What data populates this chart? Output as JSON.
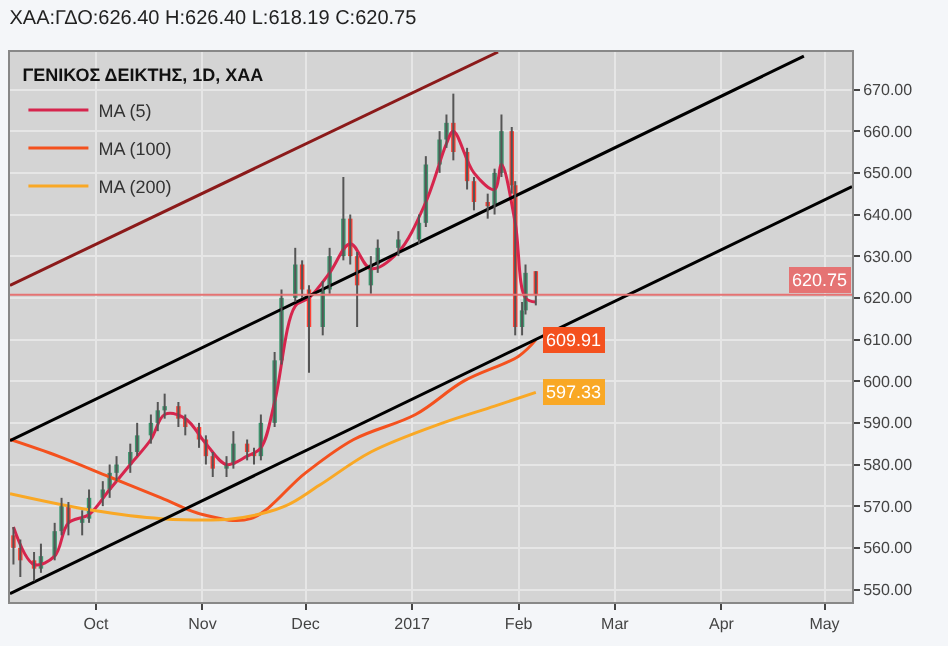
{
  "chart_data": {
    "type": "candlestick",
    "title": "ΧΑΑ:ΓΔΟ:626.40 H:626.40 L:618.19 C:620.75",
    "legend_title": "ΓΕΝΙΚΟΣ ΔΕΙΚΤΗΣ, 1D, ΧΑΑ",
    "x": [
      "2016-09-07",
      "2016-09-09",
      "2016-09-13",
      "2016-09-15",
      "2016-09-19",
      "2016-09-21",
      "2016-09-23",
      "2016-09-27",
      "2016-09-29",
      "2016-10-03",
      "2016-10-05",
      "2016-10-07",
      "2016-10-11",
      "2016-10-13",
      "2016-10-17",
      "2016-10-19",
      "2016-10-21",
      "2016-10-25",
      "2016-10-27",
      "2016-10-31",
      "2016-11-02",
      "2016-11-04",
      "2016-11-08",
      "2016-11-10",
      "2016-11-14",
      "2016-11-16",
      "2016-11-18",
      "2016-11-22",
      "2016-11-24",
      "2016-11-28",
      "2016-11-30",
      "2016-12-02",
      "2016-12-06",
      "2016-12-08",
      "2016-12-12",
      "2016-12-14",
      "2016-12-16",
      "2016-12-20",
      "2016-12-22",
      "2016-12-28",
      "2017-01-03",
      "2017-01-05",
      "2017-01-09",
      "2017-01-11",
      "2017-01-13",
      "2017-01-17",
      "2017-01-19",
      "2017-01-23",
      "2017-01-25",
      "2017-01-27",
      "2017-01-30",
      "2017-01-31",
      "2017-02-02",
      "2017-02-03",
      "2017-02-06"
    ],
    "ohlc": [
      [
        563,
        565,
        556,
        560
      ],
      [
        560,
        562,
        553,
        557
      ],
      [
        557,
        559,
        552,
        555
      ],
      [
        555,
        561,
        554,
        558
      ],
      [
        558,
        566,
        557,
        564
      ],
      [
        564,
        572,
        563,
        570
      ],
      [
        570,
        571,
        563,
        566
      ],
      [
        566,
        569,
        563,
        567
      ],
      [
        567,
        574,
        566,
        572
      ],
      [
        572,
        576,
        570,
        574
      ],
      [
        574,
        580,
        572,
        578
      ],
      [
        578,
        582,
        576,
        580
      ],
      [
        580,
        585,
        578,
        583
      ],
      [
        583,
        590,
        582,
        587
      ],
      [
        587,
        592,
        585,
        590
      ],
      [
        590,
        595,
        588,
        593
      ],
      [
        593,
        597,
        591,
        594
      ],
      [
        594,
        595,
        589,
        591
      ],
      [
        591,
        592,
        587,
        589
      ],
      [
        589,
        590,
        584,
        586
      ],
      [
        586,
        587,
        580,
        582
      ],
      [
        582,
        583,
        577,
        579
      ],
      [
        579,
        582,
        577,
        580
      ],
      [
        580,
        588,
        579,
        585
      ],
      [
        585,
        586,
        581,
        583
      ],
      [
        583,
        584,
        580,
        582
      ],
      [
        582,
        592,
        581,
        590
      ],
      [
        590,
        607,
        589,
        605
      ],
      [
        605,
        622,
        604,
        620
      ],
      [
        620,
        632,
        619,
        628
      ],
      [
        628,
        629,
        620,
        622
      ],
      [
        622,
        623,
        602,
        613
      ],
      [
        613,
        624,
        611,
        622
      ],
      [
        622,
        632,
        621,
        630
      ],
      [
        630,
        649,
        629,
        639
      ],
      [
        639,
        640,
        628,
        630
      ],
      [
        630,
        631,
        613,
        623
      ],
      [
        623,
        630,
        621,
        628
      ],
      [
        628,
        634,
        626,
        632
      ],
      [
        632,
        636,
        630,
        634
      ],
      [
        634,
        640,
        633,
        638
      ],
      [
        638,
        654,
        637,
        652
      ],
      [
        652,
        660,
        650,
        658
      ],
      [
        658,
        664,
        656,
        662
      ],
      [
        662,
        669,
        653,
        655
      ],
      [
        655,
        656,
        646,
        648
      ],
      [
        648,
        649,
        641,
        643
      ],
      [
        643,
        645,
        639,
        642
      ],
      [
        642,
        651,
        640,
        650
      ],
      [
        650,
        664,
        649,
        660
      ],
      [
        660,
        661,
        645,
        647
      ],
      [
        647,
        648,
        611,
        613
      ],
      [
        613,
        619,
        611,
        617
      ],
      [
        617,
        628,
        616,
        626
      ],
      [
        626.4,
        626.4,
        618.19,
        620.75
      ]
    ],
    "series": [
      {
        "type": "line",
        "name": "MA (5)",
        "color": "#d6254d",
        "x": [
          "2016-09-07",
          "2016-09-13",
          "2016-09-19",
          "2016-09-23",
          "2016-09-29",
          "2016-10-05",
          "2016-10-11",
          "2016-10-17",
          "2016-10-21",
          "2016-10-27",
          "2016-11-02",
          "2016-11-08",
          "2016-11-14",
          "2016-11-18",
          "2016-11-22",
          "2016-11-28",
          "2016-12-02",
          "2016-12-08",
          "2016-12-14",
          "2016-12-20",
          "2016-12-28",
          "2017-01-05",
          "2017-01-11",
          "2017-01-13",
          "2017-01-19",
          "2017-01-25",
          "2017-01-27",
          "2017-01-31",
          "2017-02-03",
          "2017-02-06"
        ],
        "values": [
          565,
          556,
          558,
          566,
          568,
          574,
          580,
          586,
          592,
          591,
          585,
          580,
          582,
          584,
          595,
          618,
          620,
          626,
          633,
          627,
          631,
          643,
          657,
          660,
          650,
          646,
          652,
          638,
          620,
          619
        ]
      },
      {
        "type": "line",
        "name": "MA (100)",
        "color": "#f4511e",
        "x": [
          "2016-09-06",
          "2016-09-20",
          "2016-10-05",
          "2016-10-20",
          "2016-11-01",
          "2016-11-15",
          "2016-12-01",
          "2016-12-15",
          "2017-01-02",
          "2017-01-16",
          "2017-02-01",
          "2017-02-06"
        ],
        "values": [
          586,
          582,
          577,
          572,
          568,
          567,
          578,
          586,
          592,
          600,
          606,
          609.91
        ],
        "value_labels": [
          null,
          null,
          null,
          null,
          null,
          null,
          null,
          null,
          null,
          null,
          null,
          "609.91"
        ]
      },
      {
        "type": "line",
        "name": "MA (200)",
        "color": "#f9a825",
        "x": [
          "2016-09-06",
          "2016-09-30",
          "2016-10-20",
          "2016-11-10",
          "2016-11-25",
          "2016-12-05",
          "2016-12-20",
          "2017-01-10",
          "2017-01-25",
          "2017-02-06"
        ],
        "values": [
          573,
          569,
          567,
          567,
          570,
          575,
          583,
          590,
          594,
          597.33
        ],
        "value_labels": [
          null,
          null,
          null,
          null,
          null,
          null,
          null,
          null,
          null,
          "597.33"
        ]
      },
      {
        "type": "line",
        "color": "#8b1a1a",
        "x": [
          "2016-09-06",
          "2017-01-26"
        ],
        "values": [
          623,
          679
        ]
      },
      {
        "type": "line",
        "color": "#000000",
        "x": [
          "2016-09-06",
          "2017-04-25"
        ],
        "values": [
          585.7,
          678
        ]
      },
      {
        "type": "line",
        "color": "#000000",
        "x": [
          "2016-09-06",
          "2017-05-09"
        ],
        "values": [
          549,
          646.7
        ]
      }
    ],
    "ref_lines": [
      {
        "axis": "y",
        "value": 620.75,
        "label": "620.75",
        "color": "#e57373"
      }
    ],
    "xlim": [
      "2016-09-06",
      "2017-05-09"
    ],
    "xticks": [
      {
        "value": "2016-10-01",
        "label": "Oct"
      },
      {
        "value": "2016-11-01",
        "label": "Nov"
      },
      {
        "value": "2016-12-01",
        "label": "Dec"
      },
      {
        "value": "2017-01-01",
        "label": "2017"
      },
      {
        "value": "2017-02-01",
        "label": "Feb"
      },
      {
        "value": "2017-03-01",
        "label": "Mar"
      },
      {
        "value": "2017-04-01",
        "label": "Apr"
      },
      {
        "value": "2017-05-01",
        "label": "May"
      }
    ],
    "ylim": [
      547,
      679
    ],
    "yticks": [
      {
        "value": 550,
        "label": "550.00"
      },
      {
        "value": 560,
        "label": "560.00"
      },
      {
        "value": 570,
        "label": "570.00"
      },
      {
        "value": 580,
        "label": "580.00"
      },
      {
        "value": 590,
        "label": "590.00"
      },
      {
        "value": 600,
        "label": "600.00"
      },
      {
        "value": 610,
        "label": "610.00"
      },
      {
        "value": 620,
        "label": "620.00"
      },
      {
        "value": 630,
        "label": "630.00"
      },
      {
        "value": 640,
        "label": "640.00"
      },
      {
        "value": 650,
        "label": "650.00"
      },
      {
        "value": 660,
        "label": "660.00"
      },
      {
        "value": 670,
        "label": "670.00"
      }
    ],
    "grid": true,
    "legend": "top left"
  }
}
